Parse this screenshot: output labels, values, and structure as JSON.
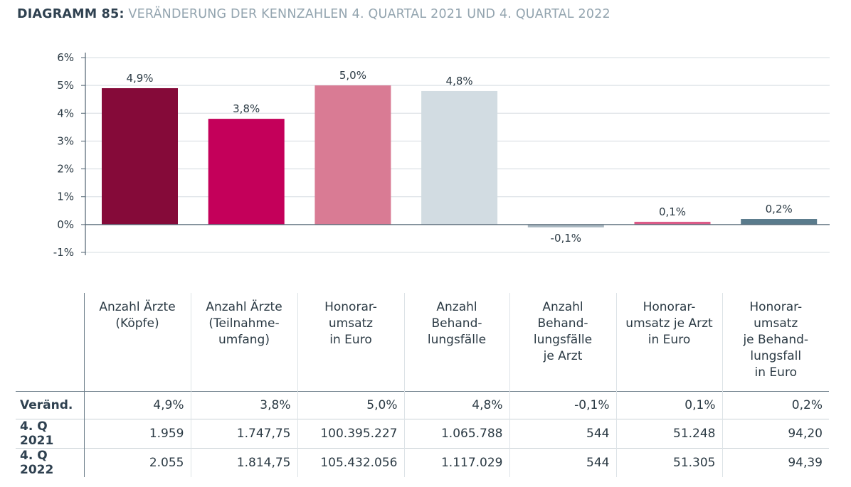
{
  "header": {
    "label": "DIAGRAMM 85:",
    "subtitle": "VERÄNDERUNG DER KENNZAHLEN 4. QUARTAL 2021 UND 4. QUARTAL 2022"
  },
  "chart_data": {
    "type": "bar",
    "ylim": [
      -1,
      6
    ],
    "yticks": [
      6,
      5,
      4,
      3,
      2,
      1,
      0,
      -1
    ],
    "ytick_labels": [
      "6%",
      "5%",
      "4%",
      "3%",
      "2%",
      "1%",
      "0%",
      "-1%"
    ],
    "grid": true,
    "categories": [
      "Anzahl Ärzte (Köpfe)",
      "Anzahl Ärzte (Teilnahme-umfang)",
      "Honorar-umsatz in Euro",
      "Anzahl Behand-lungsfälle",
      "Anzahl Behand-lungsfälle je Arzt",
      "Honorar-umsatz je Arzt in Euro",
      "Honorar-umsatz je Behand-lungsfall in Euro"
    ],
    "values": [
      4.9,
      3.8,
      5.0,
      4.8,
      -0.1,
      0.1,
      0.2
    ],
    "value_labels": [
      "4,9%",
      "3,8%",
      "5,0%",
      "4,8%",
      "-0,1%",
      "0,1%",
      "0,2%"
    ],
    "colors": [
      "#850a39",
      "#c4005a",
      "#d97b94",
      "#d2dce2",
      "#a9b8c1",
      "#dc5b88",
      "#5a7b8c"
    ]
  },
  "table": {
    "columns": [
      [
        "Anzahl Ärzte",
        "(Köpfe)"
      ],
      [
        "Anzahl Ärzte",
        "(Teilnahme-",
        "umfang)"
      ],
      [
        "Honorar-",
        "umsatz",
        "in Euro"
      ],
      [
        "Anzahl",
        "Behand-",
        "lungsfälle"
      ],
      [
        "Anzahl",
        "Behand-",
        "lungsfälle",
        "je Arzt"
      ],
      [
        "Honorar-",
        "umsatz je Arzt",
        "in Euro"
      ],
      [
        "Honorar-",
        "umsatz",
        "je Behand-",
        "lungsfall",
        "in Euro"
      ]
    ],
    "rows": [
      {
        "label": "Veränd.",
        "values": [
          "4,9%",
          "3,8%",
          "5,0%",
          "4,8%",
          "-0,1%",
          "0,1%",
          "0,2%"
        ]
      },
      {
        "label": "4. Q 2021",
        "values": [
          "1.959",
          "1.747,75",
          "100.395.227",
          "1.065.788",
          "544",
          "51.248",
          "94,20"
        ]
      },
      {
        "label": "4. Q 2022",
        "values": [
          "2.055",
          "1.814,75",
          "105.432.056",
          "1.117.029",
          "544",
          "51.305",
          "94,39"
        ]
      }
    ]
  }
}
